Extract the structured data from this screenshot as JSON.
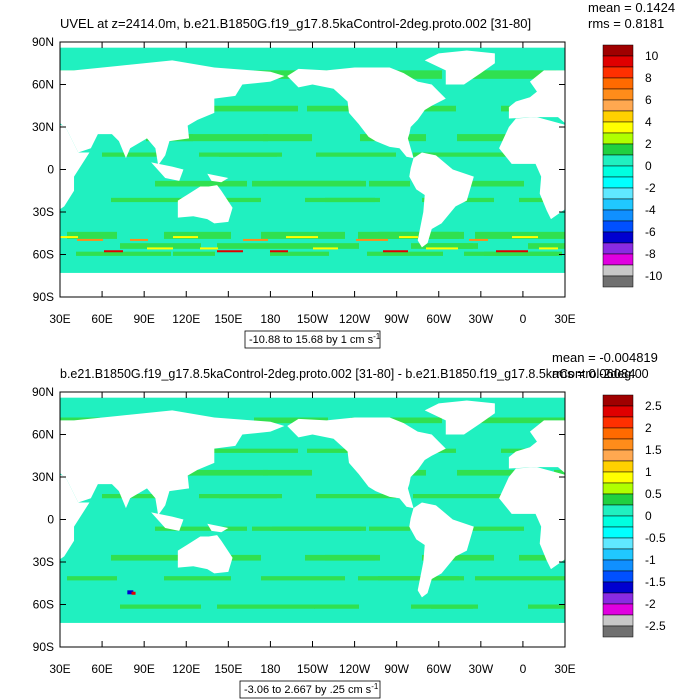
{
  "panels": [
    {
      "title": "UVEL at z=2414.0m, b.e21.B1850G.f19_g17.8.5kaControl-2deg.proto.002 [31-80]",
      "mean_label": "mean = 0.1424",
      "rms_label": "rms = 0.8181",
      "xlim": [
        30,
        390
      ],
      "ylim": [
        -90,
        90
      ],
      "yticks": [
        {
          "value": 90,
          "label": "90N"
        },
        {
          "value": 60,
          "label": "60N"
        },
        {
          "value": 30,
          "label": "30N"
        },
        0,
        {
          "value": -30,
          "label": "30S"
        },
        {
          "value": -60,
          "label": "60S"
        },
        {
          "value": -90,
          "label": "90S"
        }
      ],
      "xticks": [
        {
          "value": 30,
          "label": "30E"
        },
        {
          "value": 60,
          "label": "60E"
        },
        {
          "value": 90,
          "label": "90E"
        },
        {
          "value": 120,
          "label": "120E"
        },
        {
          "value": 150,
          "label": "150E"
        },
        180,
        {
          "value": 210,
          "label": "150W"
        },
        {
          "value": 240,
          "label": "120W"
        },
        {
          "value": 270,
          "label": "90W"
        },
        {
          "value": 300,
          "label": "60W"
        },
        {
          "value": 330,
          "label": "30W"
        },
        {
          "value": 360,
          "label": "0"
        },
        {
          "value": 390,
          "label": "30E"
        }
      ],
      "colorbar": {
        "colors": [
          "#a00000",
          "#e00000",
          "#ff3000",
          "#ff6a00",
          "#ff8c1a",
          "#ffa850",
          "#ffd000",
          "#ffff00",
          "#b0ff00",
          "#20d040",
          "#20f0c0",
          "#00ffe0",
          "#00ffff",
          "#60e8ff",
          "#20c8ff",
          "#1090ff",
          "#0050ff",
          "#0000d0",
          "#8a2be2",
          "#e000e0",
          "#c8c8c8",
          "#707070"
        ],
        "labels": [
          10,
          8,
          6,
          4,
          2,
          0,
          -2,
          -4,
          -6,
          -8,
          -10
        ]
      },
      "info": {
        "text": "-10.88 to 15.68 by 1 cm s",
        "superscript": "-1"
      }
    },
    {
      "title": "b.e21.B1850G.f19_g17.8.5kaControl-2deg.proto.002 [31-80] - b.e21.B1850.f19_g17.8.5kaControl-2deg.00",
      "mean_label": "mean = -0.004819",
      "rms_label": "rms = 0.06084",
      "xlim": [
        30,
        390
      ],
      "ylim": [
        -90,
        90
      ],
      "yticks": [
        {
          "value": 90,
          "label": "90N"
        },
        {
          "value": 60,
          "label": "60N"
        },
        {
          "value": 30,
          "label": "30N"
        },
        0,
        {
          "value": -30,
          "label": "30S"
        },
        {
          "value": -60,
          "label": "60S"
        },
        {
          "value": -90,
          "label": "90S"
        }
      ],
      "xticks": [
        {
          "value": 30,
          "label": "30E"
        },
        {
          "value": 60,
          "label": "60E"
        },
        {
          "value": 90,
          "label": "90E"
        },
        {
          "value": 120,
          "label": "120E"
        },
        {
          "value": 150,
          "label": "150E"
        },
        180,
        {
          "value": 210,
          "label": "150W"
        },
        {
          "value": 240,
          "label": "120W"
        },
        {
          "value": 270,
          "label": "90W"
        },
        {
          "value": 300,
          "label": "60W"
        },
        {
          "value": 330,
          "label": "30W"
        },
        {
          "value": 360,
          "label": "0"
        },
        {
          "value": 390,
          "label": "30E"
        }
      ],
      "colorbar": {
        "colors": [
          "#a00000",
          "#e00000",
          "#ff3000",
          "#ff6a00",
          "#ff8c1a",
          "#ffa850",
          "#ffd000",
          "#ffff00",
          "#b0ff00",
          "#20d040",
          "#20f0c0",
          "#00ffe0",
          "#00ffff",
          "#60e8ff",
          "#20c8ff",
          "#1090ff",
          "#0050ff",
          "#0000d0",
          "#8a2be2",
          "#e000e0",
          "#c8c8c8",
          "#707070"
        ],
        "labels": [
          2.5,
          2,
          1.5,
          1,
          0.5,
          0,
          -0.5,
          -1,
          -1.5,
          -2,
          -2.5
        ]
      },
      "info": {
        "text": "-3.06 to 2.667 by .25 cm s",
        "superscript": "-1"
      }
    }
  ]
}
